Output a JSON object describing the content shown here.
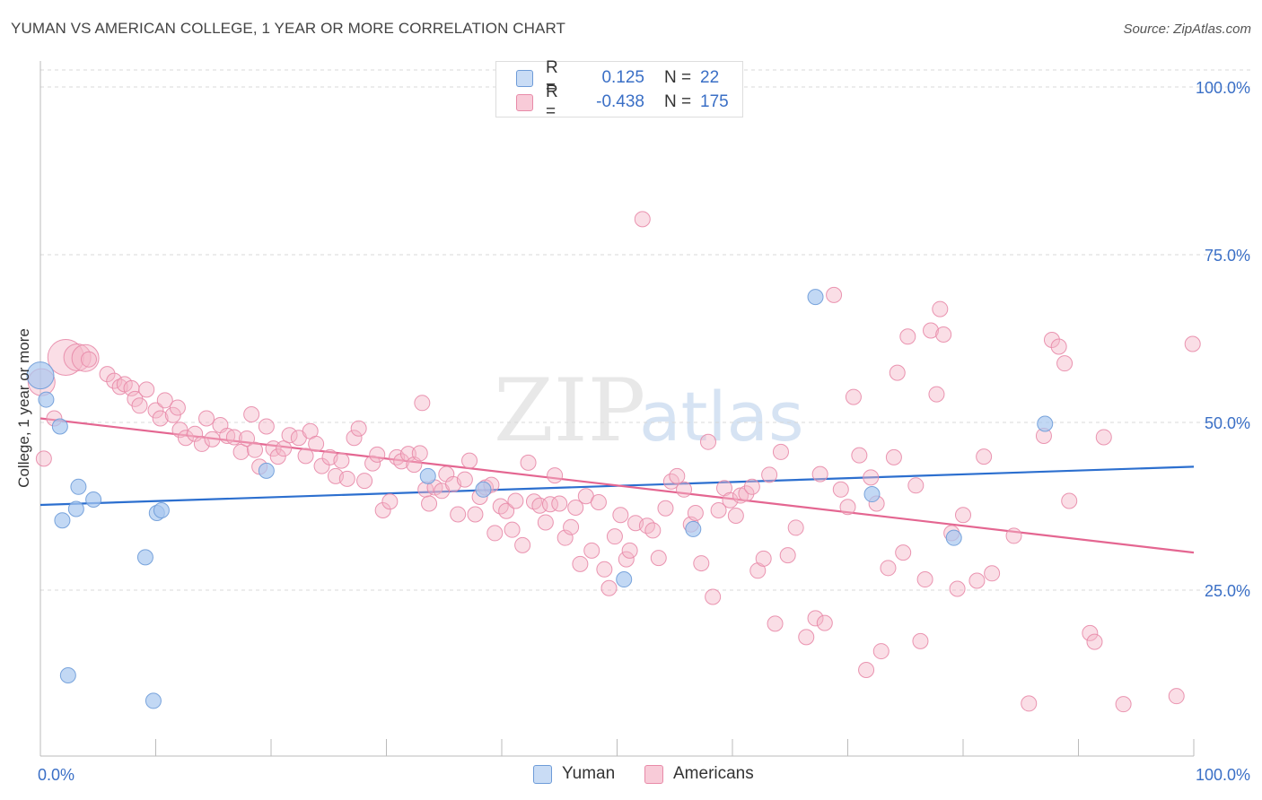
{
  "title": "YUMAN VS AMERICAN COLLEGE, 1 YEAR OR MORE CORRELATION CHART",
  "source": "Source: ZipAtlas.com",
  "watermark": {
    "zip": "ZIP",
    "atlas": "atlas"
  },
  "legend_stats": {
    "r_label": "R =",
    "n_label": "N =",
    "rows": [
      {
        "r": "0.125",
        "n": "22",
        "color": "#a8c8f0"
      },
      {
        "r": "-0.438",
        "n": "175",
        "color": "#f4b6c8"
      }
    ]
  },
  "legend_bottom": [
    {
      "label": "Yuman",
      "color": "#a8c8f0"
    },
    {
      "label": "Americans",
      "color": "#f4b6c8"
    }
  ],
  "colors": {
    "yuman_fill": "#a8c8f0",
    "yuman_stroke": "#6d9bd8",
    "yuman_line": "#2c6fcf",
    "americans_fill": "#f4b6c8",
    "americans_stroke": "#e88aa8",
    "americans_line": "#e46691",
    "axis_label": "#3a6fc6",
    "grid": "#d8d8d8"
  },
  "chart_data": {
    "type": "scatter",
    "title": "YUMAN VS AMERICAN COLLEGE, 1 YEAR OR MORE CORRELATION CHART",
    "xlabel": "",
    "ylabel": "College, 1 year or more",
    "xlim": [
      0,
      100
    ],
    "ylim": [
      0,
      102
    ],
    "x_tick_labels": [
      {
        "value": 0,
        "label": "0.0%"
      },
      {
        "value": 100,
        "label": "100.0%"
      }
    ],
    "y_tick_labels": [
      {
        "value": 100,
        "label": "100.0%"
      },
      {
        "value": 75,
        "label": "75.0%"
      },
      {
        "value": 50,
        "label": "50.0%"
      },
      {
        "value": 25,
        "label": "25.0%"
      }
    ],
    "grid": true,
    "legend": "top-center",
    "series": [
      {
        "name": "Yuman",
        "trend": {
          "x": [
            0,
            100
          ],
          "y": [
            37.7,
            43.4
          ]
        },
        "points": [
          [
            0.0,
            57,
            2
          ],
          [
            0.5,
            53.4,
            1
          ],
          [
            1.7,
            49.4,
            1
          ],
          [
            1.9,
            35.4,
            1
          ],
          [
            2.4,
            12.3,
            1
          ],
          [
            3.1,
            37.1,
            1
          ],
          [
            3.3,
            40.4,
            1
          ],
          [
            4.6,
            38.5,
            1
          ],
          [
            9.1,
            29.9,
            1
          ],
          [
            9.8,
            8.5,
            1
          ],
          [
            10.1,
            36.5,
            1
          ],
          [
            10.5,
            36.9,
            1
          ],
          [
            19.6,
            42.8,
            1
          ],
          [
            33.6,
            42,
            1
          ],
          [
            38.4,
            40,
            1
          ],
          [
            50.6,
            26.6,
            1
          ],
          [
            56.6,
            34.1,
            1
          ],
          [
            67.2,
            68.7,
            1
          ],
          [
            72.1,
            39.3,
            1
          ],
          [
            79.2,
            32.8,
            1
          ],
          [
            87.1,
            49.8,
            1
          ]
        ]
      },
      {
        "name": "Americans",
        "trend": {
          "x": [
            0,
            100
          ],
          "y": [
            50.6,
            30.6
          ]
        },
        "points": [
          [
            0.1,
            56,
            2
          ],
          [
            0.3,
            44.6,
            1
          ],
          [
            1.2,
            50.6,
            1
          ],
          [
            2.2,
            59.7,
            3
          ],
          [
            3.2,
            59.7,
            2
          ],
          [
            3.9,
            59.6,
            2
          ],
          [
            4.2,
            59.4,
            1
          ],
          [
            5.8,
            57.2,
            1
          ],
          [
            6.4,
            56.2,
            1
          ],
          [
            6.9,
            55.3,
            1
          ],
          [
            7.3,
            55.7,
            1
          ],
          [
            7.9,
            55.1,
            1
          ],
          [
            8.2,
            53.5,
            1
          ],
          [
            8.6,
            52.5,
            1
          ],
          [
            9.2,
            54.9,
            1
          ],
          [
            10.0,
            51.8,
            1
          ],
          [
            10.4,
            50.6,
            1
          ],
          [
            10.8,
            53.3,
            1
          ],
          [
            11.5,
            51.1,
            1
          ],
          [
            11.9,
            52.2,
            1
          ],
          [
            12.1,
            48.9,
            1
          ],
          [
            12.6,
            47.7,
            1
          ],
          [
            13.4,
            48.3,
            1
          ],
          [
            14.0,
            46.8,
            1
          ],
          [
            14.4,
            50.6,
            1
          ],
          [
            14.9,
            47.5,
            1
          ],
          [
            15.6,
            49.6,
            1
          ],
          [
            16.2,
            48.0,
            1
          ],
          [
            16.8,
            47.8,
            1
          ],
          [
            17.4,
            45.6,
            1
          ],
          [
            17.9,
            47.6,
            1
          ],
          [
            18.3,
            51.2,
            1
          ],
          [
            18.6,
            45.9,
            1
          ],
          [
            19.0,
            43.4,
            1
          ],
          [
            19.6,
            49.4,
            1
          ],
          [
            20.2,
            46.1,
            1
          ],
          [
            20.6,
            44.9,
            1
          ],
          [
            21.1,
            46.1,
            1
          ],
          [
            21.6,
            48.1,
            1
          ],
          [
            22.4,
            47.7,
            1
          ],
          [
            23.0,
            45.0,
            1
          ],
          [
            23.4,
            48.7,
            1
          ],
          [
            23.9,
            46.8,
            1
          ],
          [
            24.4,
            43.5,
            1
          ],
          [
            25.1,
            44.8,
            1
          ],
          [
            25.6,
            42.0,
            1
          ],
          [
            26.1,
            44.3,
            1
          ],
          [
            26.6,
            41.6,
            1
          ],
          [
            27.2,
            47.7,
            1
          ],
          [
            27.6,
            49.1,
            1
          ],
          [
            28.1,
            41.3,
            1
          ],
          [
            28.8,
            43.9,
            1
          ],
          [
            29.2,
            45.2,
            1
          ],
          [
            29.7,
            36.9,
            1
          ],
          [
            30.3,
            38.2,
            1
          ],
          [
            30.9,
            44.8,
            1
          ],
          [
            31.3,
            44.2,
            1
          ],
          [
            31.9,
            45.3,
            1
          ],
          [
            32.4,
            43.7,
            1
          ],
          [
            32.9,
            45.4,
            1
          ],
          [
            33.1,
            52.9,
            1
          ],
          [
            33.4,
            40.0,
            1
          ],
          [
            33.7,
            37.9,
            1
          ],
          [
            34.2,
            40.3,
            1
          ],
          [
            34.8,
            39.8,
            1
          ],
          [
            35.2,
            42.3,
            1
          ],
          [
            35.8,
            40.8,
            1
          ],
          [
            36.2,
            36.3,
            1
          ],
          [
            36.8,
            41.5,
            1
          ],
          [
            37.2,
            44.3,
            1
          ],
          [
            37.7,
            36.3,
            1
          ],
          [
            38.1,
            38.9,
            1
          ],
          [
            38.6,
            40.3,
            1
          ],
          [
            39.1,
            40.7,
            1
          ],
          [
            39.4,
            33.5,
            1
          ],
          [
            39.9,
            37.5,
            1
          ],
          [
            40.4,
            36.8,
            1
          ],
          [
            40.9,
            34.0,
            1
          ],
          [
            41.2,
            38.3,
            1
          ],
          [
            41.8,
            31.7,
            1
          ],
          [
            42.3,
            44.0,
            1
          ],
          [
            42.8,
            38.2,
            1
          ],
          [
            43.3,
            37.6,
            1
          ],
          [
            43.8,
            35.1,
            1
          ],
          [
            44.2,
            37.8,
            1
          ],
          [
            44.6,
            42.1,
            1
          ],
          [
            45.0,
            37.9,
            1
          ],
          [
            45.5,
            32.8,
            1
          ],
          [
            46.0,
            34.4,
            1
          ],
          [
            46.4,
            37.3,
            1
          ],
          [
            46.8,
            28.9,
            1
          ],
          [
            47.3,
            39.0,
            1
          ],
          [
            47.8,
            30.9,
            1
          ],
          [
            48.4,
            38.1,
            1
          ],
          [
            48.9,
            28.1,
            1
          ],
          [
            49.3,
            25.3,
            1
          ],
          [
            49.8,
            33.0,
            1
          ],
          [
            50.3,
            36.2,
            1
          ],
          [
            50.8,
            29.6,
            1
          ],
          [
            51.1,
            30.9,
            1
          ],
          [
            51.6,
            35.0,
            1
          ],
          [
            52.2,
            80.3,
            1
          ],
          [
            52.6,
            34.6,
            1
          ],
          [
            53.1,
            33.9,
            1
          ],
          [
            53.6,
            29.8,
            1
          ],
          [
            54.2,
            37.2,
            1
          ],
          [
            54.7,
            41.2,
            1
          ],
          [
            55.2,
            42.0,
            1
          ],
          [
            55.8,
            40.0,
            1
          ],
          [
            56.4,
            34.8,
            1
          ],
          [
            56.8,
            36.5,
            1
          ],
          [
            57.3,
            29.0,
            1
          ],
          [
            57.9,
            47.1,
            1
          ],
          [
            58.3,
            24.0,
            1
          ],
          [
            58.8,
            36.9,
            1
          ],
          [
            59.3,
            40.2,
            1
          ],
          [
            59.8,
            38.4,
            1
          ],
          [
            60.3,
            36.1,
            1
          ],
          [
            60.7,
            39.1,
            1
          ],
          [
            61.2,
            39.4,
            1
          ],
          [
            61.7,
            40.4,
            1
          ],
          [
            62.2,
            27.9,
            1
          ],
          [
            62.7,
            29.7,
            1
          ],
          [
            63.2,
            42.2,
            1
          ],
          [
            63.7,
            20.0,
            1
          ],
          [
            64.2,
            45.6,
            1
          ],
          [
            64.8,
            30.2,
            1
          ],
          [
            65.5,
            34.3,
            1
          ],
          [
            66.4,
            18.0,
            1
          ],
          [
            67.2,
            20.8,
            1
          ],
          [
            67.6,
            42.3,
            1
          ],
          [
            68.0,
            20.1,
            1
          ],
          [
            68.8,
            69.0,
            1
          ],
          [
            69.4,
            40.0,
            1
          ],
          [
            70.0,
            37.4,
            1
          ],
          [
            70.5,
            53.8,
            1
          ],
          [
            71.0,
            45.1,
            1
          ],
          [
            71.6,
            13.1,
            1
          ],
          [
            72.0,
            41.8,
            1
          ],
          [
            72.5,
            37.9,
            1
          ],
          [
            72.9,
            15.9,
            1
          ],
          [
            73.5,
            28.3,
            1
          ],
          [
            74.0,
            44.8,
            1
          ],
          [
            74.3,
            57.4,
            1
          ],
          [
            74.8,
            30.6,
            1
          ],
          [
            75.2,
            62.8,
            1
          ],
          [
            75.9,
            40.6,
            1
          ],
          [
            76.3,
            17.4,
            1
          ],
          [
            76.7,
            26.6,
            1
          ],
          [
            77.2,
            63.7,
            1
          ],
          [
            77.7,
            54.2,
            1
          ],
          [
            78.0,
            66.9,
            1
          ],
          [
            78.3,
            63.1,
            1
          ],
          [
            79.0,
            33.5,
            1
          ],
          [
            79.5,
            25.2,
            1
          ],
          [
            80.0,
            36.2,
            1
          ],
          [
            81.2,
            26.4,
            1
          ],
          [
            81.8,
            44.9,
            1
          ],
          [
            82.5,
            27.5,
            1
          ],
          [
            84.4,
            33.1,
            1
          ],
          [
            85.7,
            8.1,
            1
          ],
          [
            87.0,
            48.0,
            1
          ],
          [
            87.7,
            62.3,
            1
          ],
          [
            88.3,
            61.3,
            1
          ],
          [
            88.8,
            58.8,
            1
          ],
          [
            89.2,
            38.3,
            1
          ],
          [
            91.0,
            18.6,
            1
          ],
          [
            91.4,
            17.3,
            1
          ],
          [
            92.2,
            47.8,
            1
          ],
          [
            93.9,
            8.0,
            1
          ],
          [
            98.5,
            9.2,
            1
          ],
          [
            99.9,
            61.7,
            1
          ]
        ]
      }
    ]
  }
}
